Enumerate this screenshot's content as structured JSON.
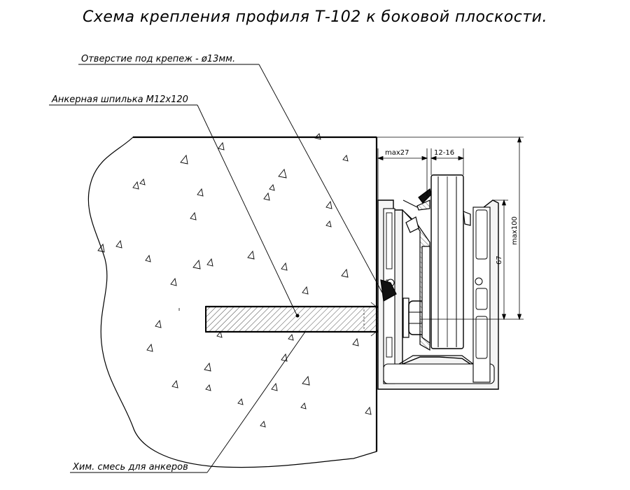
{
  "title": "Схема крепления профиля Т-102 к боковой плоскости.",
  "labels": {
    "hole": "Отверстие под крепеж - ø13мм.",
    "anchor": "Анкерная шпилька М12х120",
    "chem": "Хим. смесь для анкеров"
  },
  "dimensions": {
    "max27": "max27",
    "gap": "12-16",
    "max100": "max100",
    "d67": "67"
  }
}
